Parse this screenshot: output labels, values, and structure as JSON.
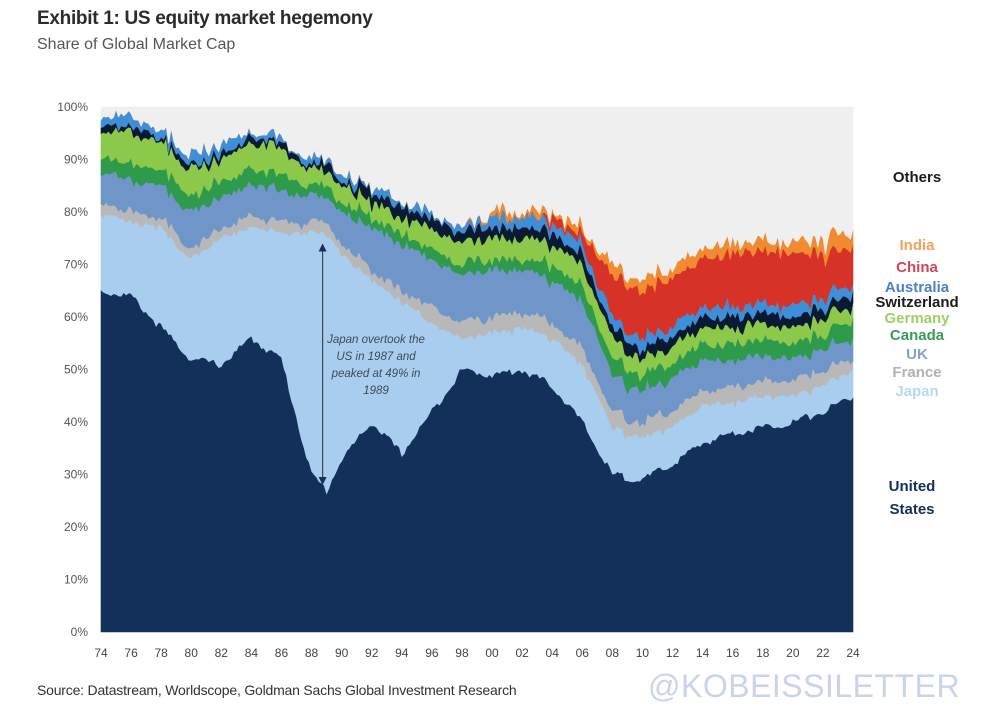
{
  "header": {
    "title": "Exhibit 1: US equity market hegemony",
    "subtitle": "Share of Global Market Cap"
  },
  "footer": {
    "source": "Source: Datastream, Worldscope, Goldman Sachs Global Investment Research",
    "watermark": "@KOBEISSILETTER"
  },
  "chart_data": {
    "type": "area",
    "title": "Exhibit 1: US equity market hegemony",
    "subtitle": "Share of Global Market Cap",
    "xlabel": "",
    "ylabel": "",
    "ylim": [
      0,
      100
    ],
    "y_ticks": [
      "0%",
      "10%",
      "20%",
      "30%",
      "40%",
      "50%",
      "60%",
      "70%",
      "80%",
      "90%",
      "100%"
    ],
    "x_ticks": [
      "74",
      "76",
      "78",
      "80",
      "82",
      "84",
      "86",
      "88",
      "90",
      "92",
      "94",
      "96",
      "98",
      "00",
      "02",
      "04",
      "06",
      "08",
      "10",
      "12",
      "14",
      "16",
      "18",
      "20",
      "22",
      "24"
    ],
    "x": [
      1974,
      1976,
      1978,
      1980,
      1982,
      1984,
      1986,
      1988,
      1989,
      1990,
      1992,
      1994,
      1996,
      1998,
      2000,
      2002,
      2004,
      2006,
      2008,
      2010,
      2012,
      2014,
      2016,
      2018,
      2020,
      2022,
      2024
    ],
    "stacked": true,
    "grid": false,
    "legend_position": "right",
    "series": [
      {
        "name": "United States",
        "color": "#13305a",
        "values": [
          65,
          64,
          58,
          52,
          51,
          56,
          52,
          30,
          27,
          33,
          40,
          34,
          42,
          50,
          49,
          50,
          47,
          40,
          30,
          29,
          32,
          36,
          38,
          39,
          40,
          42,
          45
        ]
      },
      {
        "name": "Japan",
        "color": "#a9cdee",
        "values": [
          15,
          14,
          19,
          19,
          24,
          21,
          24,
          46,
          49,
          39,
          27,
          29,
          17,
          6,
          8,
          8,
          9,
          11,
          9,
          8,
          7,
          7,
          6,
          6,
          5,
          5,
          5
        ]
      },
      {
        "name": "France",
        "color": "#b8b8b8",
        "values": [
          2,
          2,
          2,
          2,
          2,
          2,
          2,
          2,
          2,
          2,
          2,
          2,
          3,
          3,
          3,
          3,
          3,
          3,
          3,
          3,
          3,
          3,
          3,
          3,
          3,
          3,
          2
        ]
      },
      {
        "name": "UK",
        "color": "#7096c9",
        "values": [
          6,
          6,
          6,
          7,
          6,
          6,
          6,
          5,
          5,
          6,
          8,
          9,
          9,
          9,
          9,
          8,
          8,
          9,
          7,
          6,
          6,
          6,
          5,
          5,
          4,
          4,
          4
        ]
      },
      {
        "name": "Canada",
        "color": "#2e9a4c",
        "values": [
          3,
          3,
          3,
          3,
          3,
          3,
          3,
          2,
          2,
          2,
          2,
          2,
          2,
          2,
          2,
          2,
          3,
          3,
          3,
          3,
          3,
          3,
          3,
          3,
          3,
          3,
          3
        ]
      },
      {
        "name": "Germany",
        "color": "#8cc84a",
        "values": [
          5,
          6,
          5,
          5,
          4,
          5,
          5,
          3,
          3,
          3,
          3,
          3,
          4,
          4,
          4,
          4,
          4,
          4,
          4,
          3,
          3,
          3,
          3,
          3,
          3,
          3,
          3
        ]
      },
      {
        "name": "Switzerland",
        "color": "#0a1a33",
        "values": [
          1,
          1,
          1,
          1,
          1,
          1,
          1,
          1,
          1,
          1,
          2,
          2,
          2,
          2,
          2,
          2,
          2,
          2,
          2,
          2,
          2,
          2,
          2,
          2,
          2,
          2,
          2
        ]
      },
      {
        "name": "Australia",
        "color": "#3f8fd8",
        "values": [
          2,
          2,
          1,
          2,
          2,
          1,
          1,
          1,
          1,
          1,
          1,
          1,
          1,
          1,
          2,
          2,
          2,
          2,
          2,
          2,
          2,
          2,
          2,
          2,
          2,
          2,
          2
        ]
      },
      {
        "name": "China",
        "color": "#d73227",
        "values": [
          0,
          0,
          0,
          0,
          0,
          0,
          0,
          0,
          0,
          0,
          0,
          0,
          0,
          0,
          0,
          0,
          1,
          2,
          8,
          9,
          9,
          9,
          10,
          10,
          10,
          8,
          7
        ]
      },
      {
        "name": "India",
        "color": "#f28a30",
        "values": [
          0,
          0,
          0,
          0,
          0,
          0,
          0,
          0,
          0,
          0,
          0,
          0,
          0,
          0,
          1,
          1,
          1,
          1,
          2,
          2,
          2,
          2,
          2,
          2,
          2,
          3,
          3
        ]
      },
      {
        "name": "Others",
        "color": "#efefef",
        "values": [
          1,
          2,
          5,
          9,
          7,
          5,
          6,
          10,
          9,
          13,
          15,
          18,
          20,
          19,
          20,
          20,
          20,
          23,
          30,
          33,
          33,
          27,
          26,
          25,
          26,
          25,
          24
        ]
      }
    ],
    "legend": [
      {
        "label": "Others",
        "color": "#1b1b1b"
      },
      {
        "label": "India",
        "color": "#f0a25c"
      },
      {
        "label": "China",
        "color": "#d2455a"
      },
      {
        "label": "Australia",
        "color": "#4a82c8"
      },
      {
        "label": "Switzerland",
        "color": "#1b1b1b"
      },
      {
        "label": "Germany",
        "color": "#9dd06a"
      },
      {
        "label": "Canada",
        "color": "#3a9a5a"
      },
      {
        "label": "UK",
        "color": "#8aa2c8"
      },
      {
        "label": "France",
        "color": "#b2b2b2"
      },
      {
        "label": "Japan",
        "color": "#b8d8ef"
      },
      {
        "label": "United States",
        "color": "#13305a"
      }
    ],
    "annotations": [
      {
        "text_lines": [
          "Japan overtook the",
          "US in 1987 and",
          "peaked at 49% in",
          "1989"
        ],
        "arrow_x": 1989,
        "arrow_y_from": 28,
        "arrow_y_to": 74
      }
    ]
  }
}
